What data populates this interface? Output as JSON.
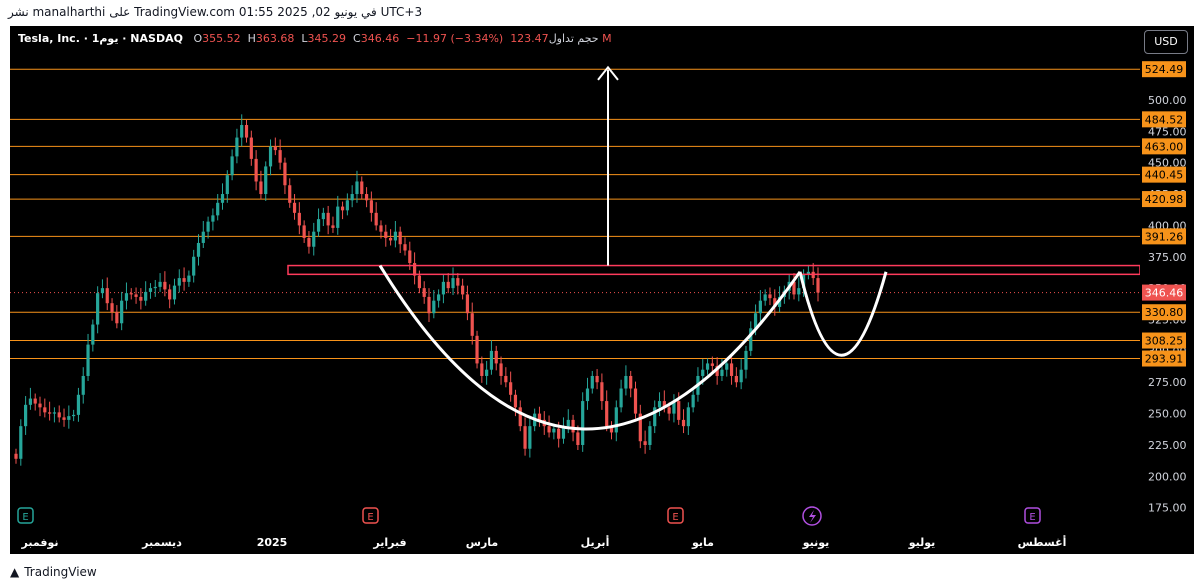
{
  "header": {
    "publish_text": "نشر manalharthi على TradingView.com في يونيو 02, 2025 01:55 UTC+3"
  },
  "legend": {
    "symbol": "Tesla, Inc. · 1يوم · NASDAQ",
    "o_label": "O",
    "o_value": "355.52",
    "h_label": "H",
    "h_value": "363.68",
    "l_label": "L",
    "l_value": "345.29",
    "c_label": "C",
    "c_value": "346.46",
    "change": "−11.97 (−3.34%)",
    "volume_label": "حجم تداول",
    "volume_value": "123.47 M"
  },
  "currency_button": "USD",
  "footer": {
    "brand": "TradingView"
  },
  "colors": {
    "up": "#26a69a",
    "down": "#ef5350",
    "level": "#f7931a",
    "resistance": "#ff3b5c",
    "pattern": "#ffffff"
  },
  "chart_data": {
    "type": "candlestick",
    "symbol": "Tesla, Inc.",
    "exchange": "NASDAQ",
    "interval": "1D",
    "ylim": [
      170,
      535
    ],
    "y_ticks": [
      175,
      200,
      225,
      250,
      275,
      300,
      325,
      350,
      375,
      400,
      425,
      450,
      475,
      500
    ],
    "x_ticks": [
      "نوفمبر",
      "ديسمبر",
      "2025",
      "فبراير",
      "مارس",
      "أبريل",
      "مايو",
      "يونيو",
      "يوليو",
      "أغسطس"
    ],
    "horizontal_levels": [
      524.49,
      484.52,
      463.0,
      440.45,
      420.98,
      391.26,
      330.8,
      308.25,
      293.91
    ],
    "last_price": 346.46,
    "resistance_zone": [
      361,
      368
    ],
    "close_series": [
      214,
      240,
      257,
      262,
      258,
      255,
      251,
      250,
      251,
      247,
      245,
      248,
      249,
      265,
      280,
      305,
      321,
      346,
      350,
      338,
      331,
      322,
      340,
      346,
      345,
      343,
      340,
      347,
      350,
      351,
      355,
      349,
      341,
      352,
      358,
      355,
      360,
      375,
      386,
      395,
      403,
      408,
      418,
      425,
      440,
      455,
      470,
      480,
      470,
      453,
      435,
      425,
      447,
      463,
      460,
      450,
      432,
      418,
      410,
      400,
      390,
      383,
      395,
      405,
      410,
      400,
      398,
      415,
      412,
      420,
      425,
      435,
      425,
      420,
      410,
      400,
      395,
      390,
      388,
      395,
      385,
      380,
      370,
      360,
      350,
      343,
      330,
      340,
      345,
      355,
      350,
      358,
      352,
      345,
      330,
      312,
      290,
      280,
      285,
      300,
      290,
      280,
      275,
      265,
      255,
      240,
      222,
      240,
      250,
      245,
      240,
      235,
      238,
      230,
      240,
      245,
      235,
      225,
      260,
      270,
      280,
      275,
      260,
      240,
      235,
      255,
      270,
      280,
      270,
      250,
      228,
      225,
      240,
      255,
      260,
      255,
      250,
      260,
      245,
      240,
      255,
      265,
      280,
      285,
      290,
      288,
      280,
      285,
      290,
      280,
      275,
      285,
      300,
      318,
      330,
      340,
      345,
      342,
      335,
      343,
      348,
      355,
      345,
      350,
      361,
      363,
      358,
      346.46
    ],
    "pattern": "cup and handle"
  }
}
